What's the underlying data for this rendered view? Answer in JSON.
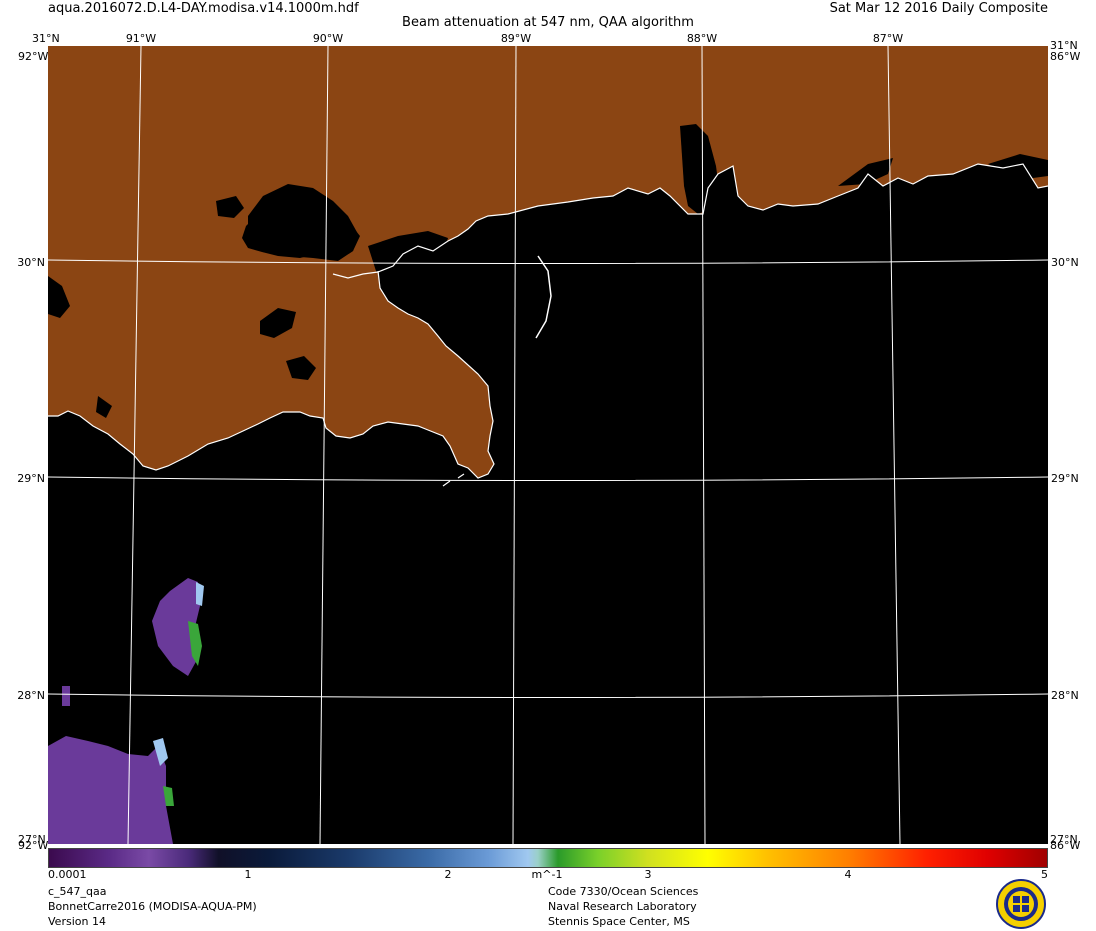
{
  "header": {
    "filename": "aqua.2016072.D.L4-DAY.modisa.v14.1000m.hdf",
    "title": "Beam attenuation at 547 nm, QAA algorithm",
    "date": "Sat Mar 12 2016 Daily Composite"
  },
  "map": {
    "lon_labels_top": [
      "91°W",
      "90°W",
      "89°W",
      "88°W",
      "87°W"
    ],
    "lat_labels_left": [
      "31°N",
      "30°N",
      "29°N",
      "28°N"
    ],
    "lat_labels_right": [
      "31°N",
      "30°N",
      "29°N",
      "28°N"
    ],
    "corner_labels": {
      "top_left_lat": "31°N",
      "top_right_lat": "31°N",
      "top_left_lon": "92°W",
      "top_right_lon": "86°W",
      "bottom_left_lat": "27°N",
      "bottom_left_lon": "92°W",
      "bottom_right_lat": "27°N",
      "bottom_right_lon": "86°W"
    },
    "lon_range": [
      -92,
      -86
    ],
    "lat_range": [
      27.3,
      31
    ],
    "colors": {
      "land": "#8B4513",
      "water": "#000000",
      "coast": "#ffffff",
      "grid": "#ffffff"
    }
  },
  "colorbar": {
    "ticks": [
      "0.0001",
      "1",
      "2",
      "m^-1",
      "3",
      "4",
      "5"
    ],
    "range": [
      0.0001,
      5
    ],
    "unit": "m^-1"
  },
  "footer": {
    "product": "c_547_qaa",
    "dataset": "BonnetCarre2016 (MODISA-AQUA-PM)",
    "version": "Version 14",
    "org_line1": "Code 7330/Ocean Sciences",
    "org_line2": "Naval Research Laboratory",
    "org_line3": "Stennis Space Center, MS"
  }
}
